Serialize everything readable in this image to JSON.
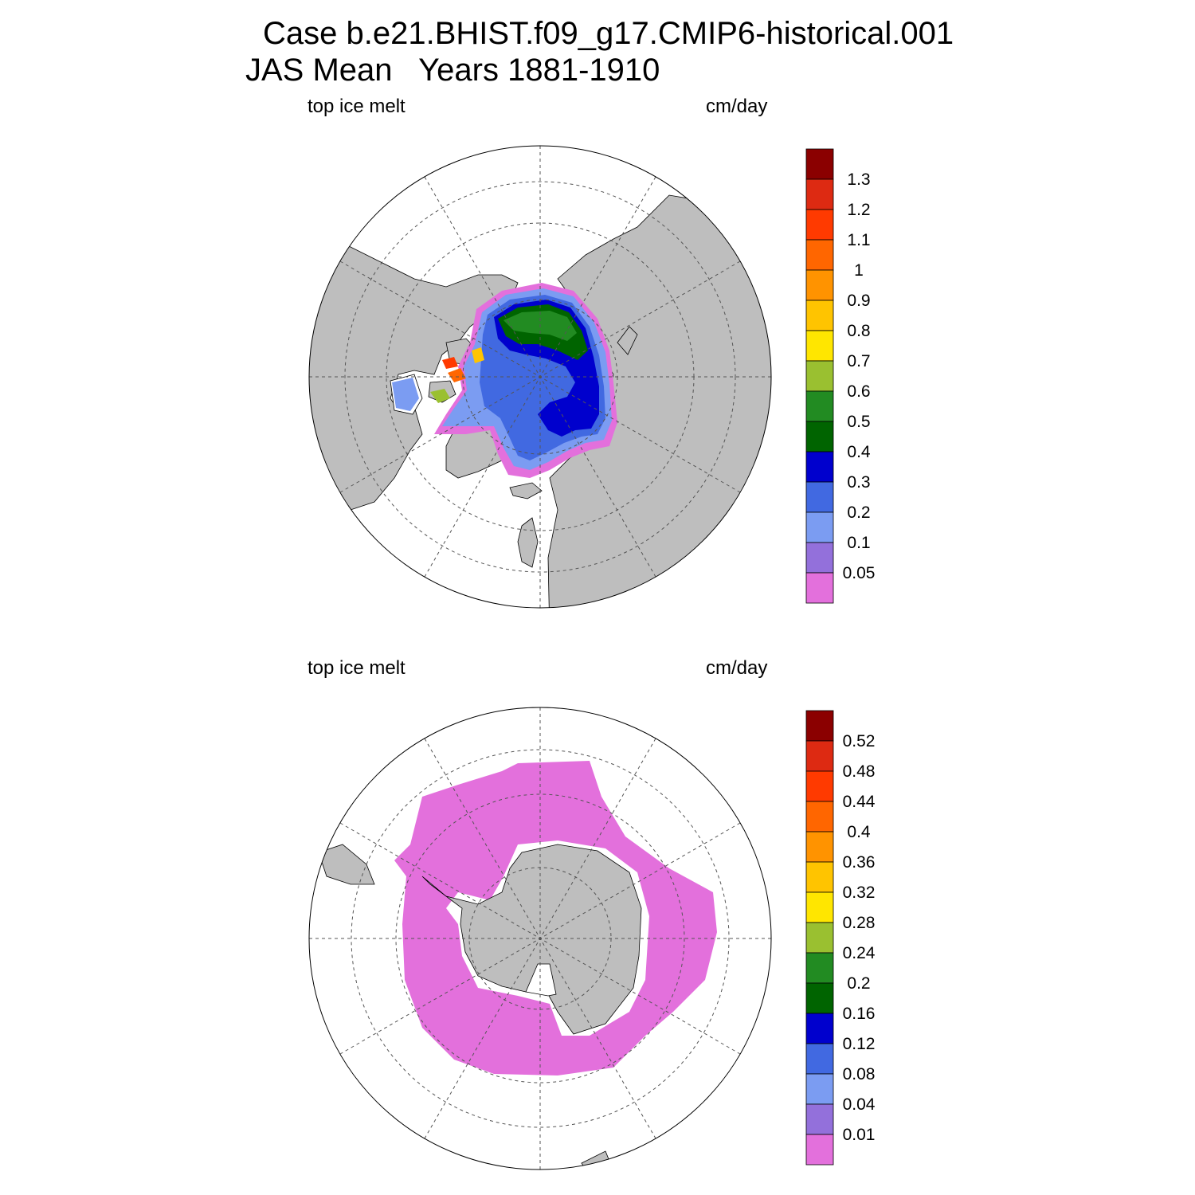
{
  "title": {
    "line1": "Case b.e21.BHIST.f09_g17.CMIP6-historical.001",
    "line2": "JAS Mean   Years 1881-1910"
  },
  "panels": [
    {
      "id": "north",
      "left_label": "top ice melt",
      "right_label": "cm/day",
      "hemisphere": "north",
      "colorbar": {
        "labels": [
          "1.3",
          "1.2",
          "1.1",
          "1",
          "0.9",
          "0.8",
          "0.7",
          "0.6",
          "0.5",
          "0.4",
          "0.3",
          "0.2",
          "0.1",
          "0.05"
        ],
        "colors": [
          "#8b0000",
          "#dd2a12",
          "#ff3a00",
          "#ff6600",
          "#ff9300",
          "#ffc400",
          "#ffe600",
          "#9ac030",
          "#228b22",
          "#006400",
          "#0000cd",
          "#4169e1",
          "#7b9cf2",
          "#9370db",
          "#e370dc"
        ]
      }
    },
    {
      "id": "south",
      "left_label": "top ice melt",
      "right_label": "cm/day",
      "hemisphere": "south",
      "colorbar": {
        "labels": [
          "0.52",
          "0.48",
          "0.44",
          "0.4",
          "0.36",
          "0.32",
          "0.28",
          "0.24",
          "0.2",
          "0.16",
          "0.12",
          "0.08",
          "0.04",
          "0.01"
        ],
        "colors": [
          "#8b0000",
          "#dd2a12",
          "#ff3a00",
          "#ff6600",
          "#ff9300",
          "#ffc400",
          "#ffe600",
          "#9ac030",
          "#228b22",
          "#006400",
          "#0000cd",
          "#4169e1",
          "#7b9cf2",
          "#9370db",
          "#e370dc"
        ]
      }
    }
  ],
  "colors": {
    "land": "#bebebe",
    "ocean": "#ffffff",
    "grid": "#555555"
  }
}
